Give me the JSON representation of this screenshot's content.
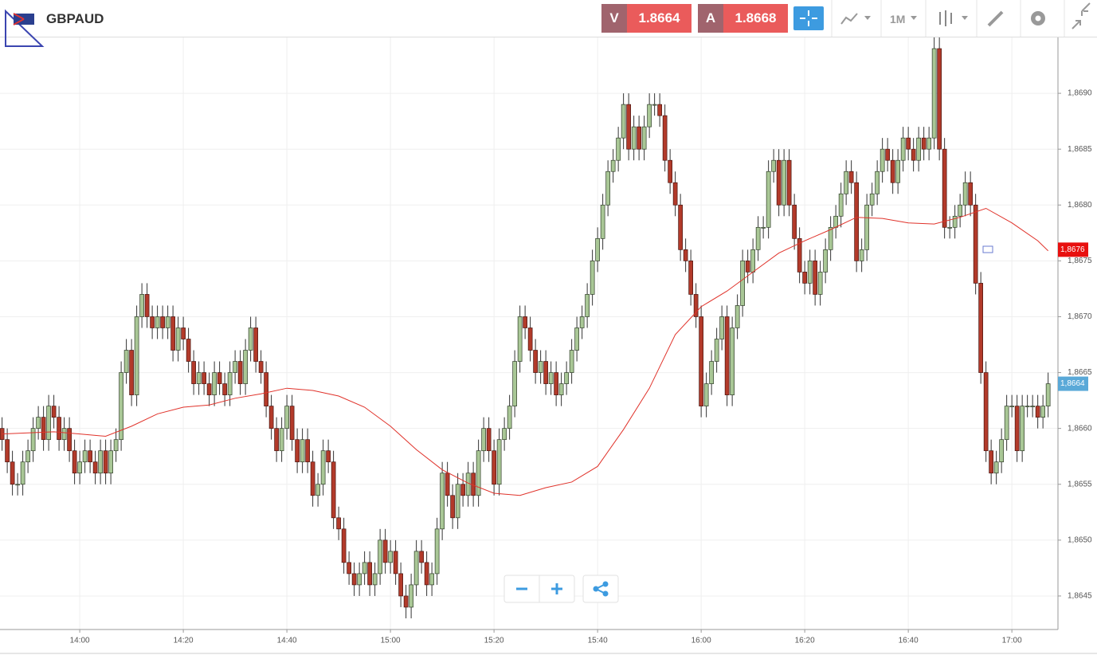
{
  "toolbar": {
    "symbol": "GBPAUD",
    "bid_label": "V",
    "bid": "1.8664",
    "ask_label": "A",
    "ask": "1.8668",
    "timeframe": "1M"
  },
  "chart_data": {
    "type": "candlestick",
    "up_color": "#a9c796",
    "down_color": "#b23a2a",
    "xlim": [
      824.6,
      1028.9
    ],
    "ylim": [
      1.8642,
      1.8695
    ],
    "grid": true,
    "xticks": [
      {
        "value": 840,
        "label": "14:00"
      },
      {
        "value": 860,
        "label": "14:20"
      },
      {
        "value": 880,
        "label": "14:40"
      },
      {
        "value": 900,
        "label": "15:00"
      },
      {
        "value": 920,
        "label": "15:20"
      },
      {
        "value": 940,
        "label": "15:40"
      },
      {
        "value": 960,
        "label": "16:00"
      },
      {
        "value": 980,
        "label": "16:20"
      },
      {
        "value": 1000,
        "label": "16:40"
      },
      {
        "value": 1020,
        "label": "17:00"
      }
    ],
    "yticks": [
      {
        "value": 1.8645,
        "label": "1,8645"
      },
      {
        "value": 1.865,
        "label": "1,8650"
      },
      {
        "value": 1.8655,
        "label": "1,8655"
      },
      {
        "value": 1.866,
        "label": "1,8660"
      },
      {
        "value": 1.8665,
        "label": "1,8665"
      },
      {
        "value": 1.867,
        "label": "1,8670"
      },
      {
        "value": 1.8675,
        "label": "1,8675"
      },
      {
        "value": 1.868,
        "label": "1,8680"
      },
      {
        "value": 1.8685,
        "label": "1,8685"
      },
      {
        "value": 1.869,
        "label": "1,8690"
      }
    ],
    "price_labels": [
      {
        "value": 1.8676,
        "label": "1,8676",
        "color": "#e8100f"
      },
      {
        "value": 1.8664,
        "label": "1,8664",
        "color": "#5aa9d8"
      }
    ],
    "x": [
      825,
      826,
      827,
      828,
      829,
      830,
      831,
      832,
      833,
      834,
      835,
      836,
      837,
      838,
      839,
      840,
      841,
      842,
      843,
      844,
      845,
      846,
      847,
      848,
      849,
      850,
      851,
      852,
      853,
      854,
      855,
      856,
      857,
      858,
      859,
      860,
      861,
      862,
      863,
      864,
      865,
      866,
      867,
      868,
      869,
      870,
      871,
      872,
      873,
      874,
      875,
      876,
      877,
      878,
      879,
      880,
      881,
      882,
      883,
      884,
      885,
      886,
      887,
      888,
      889,
      890,
      891,
      892,
      893,
      894,
      895,
      896,
      897,
      898,
      899,
      900,
      901,
      902,
      903,
      904,
      905,
      906,
      907,
      908,
      909,
      910,
      911,
      912,
      913,
      914,
      915,
      916,
      917,
      918,
      919,
      920,
      921,
      922,
      923,
      924,
      925,
      926,
      927,
      928,
      929,
      930,
      931,
      932,
      933,
      934,
      935,
      936,
      937,
      938,
      939,
      940,
      941,
      942,
      943,
      944,
      945,
      946,
      947,
      948,
      949,
      950,
      951,
      952,
      953,
      954,
      955,
      956,
      957,
      958,
      959,
      960,
      961,
      962,
      963,
      964,
      965,
      966,
      967,
      968,
      969,
      970,
      971,
      972,
      973,
      974,
      975,
      976,
      977,
      978,
      979,
      980,
      981,
      982,
      983,
      984,
      985,
      986,
      987,
      988,
      989,
      990,
      991,
      992,
      993,
      994,
      995,
      996,
      997,
      998,
      999,
      1000,
      1001,
      1002,
      1003,
      1004,
      1005,
      1006,
      1007,
      1008,
      1009,
      1010,
      1011,
      1012,
      1013,
      1014,
      1015,
      1016,
      1017,
      1018,
      1019,
      1020,
      1021,
      1022,
      1023,
      1024,
      1025,
      1026,
      1027
    ],
    "open": [
      1.866,
      1.8659,
      1.8657,
      1.8655,
      1.8655,
      1.8657,
      1.8658,
      1.866,
      1.8661,
      1.8659,
      1.8662,
      1.8661,
      1.8659,
      1.866,
      1.8658,
      1.8656,
      1.8657,
      1.8658,
      1.8657,
      1.8656,
      1.8658,
      1.8656,
      1.8658,
      1.8659,
      1.8665,
      1.8667,
      1.8663,
      1.867,
      1.8672,
      1.867,
      1.8669,
      1.867,
      1.8669,
      1.867,
      1.8667,
      1.8669,
      1.8668,
      1.8666,
      1.8664,
      1.8665,
      1.8664,
      1.8663,
      1.8665,
      1.8664,
      1.8663,
      1.8665,
      1.8666,
      1.8664,
      1.8667,
      1.8669,
      1.8666,
      1.8665,
      1.8662,
      1.866,
      1.8658,
      1.866,
      1.8662,
      1.8659,
      1.8657,
      1.8659,
      1.8657,
      1.8654,
      1.8655,
      1.8658,
      1.8657,
      1.8652,
      1.8651,
      1.8648,
      1.8647,
      1.8646,
      1.8647,
      1.8648,
      1.8646,
      1.8647,
      1.865,
      1.8648,
      1.8649,
      1.8647,
      1.8645,
      1.8644,
      1.8646,
      1.8649,
      1.8648,
      1.8646,
      1.8647,
      1.8651,
      1.8656,
      1.8654,
      1.8652,
      1.8655,
      1.8654,
      1.8656,
      1.8654,
      1.8658,
      1.866,
      1.8658,
      1.8655,
      1.8659,
      1.866,
      1.8662,
      1.8666,
      1.867,
      1.8669,
      1.8667,
      1.8665,
      1.8666,
      1.8664,
      1.8665,
      1.8663,
      1.8664,
      1.8665,
      1.8667,
      1.8669,
      1.867,
      1.8672,
      1.8675,
      1.8677,
      1.868,
      1.8683,
      1.8684,
      1.8686,
      1.8689,
      1.8685,
      1.8687,
      1.8685,
      1.8687,
      1.8689,
      1.8689,
      1.8688,
      1.8684,
      1.8682,
      1.868,
      1.8676,
      1.8675,
      1.8672,
      1.867,
      1.8662,
      1.8664,
      1.8666,
      1.8668,
      1.867,
      1.8663,
      1.8669,
      1.8671,
      1.8675,
      1.8674,
      1.8676,
      1.8678,
      1.8678,
      1.8683,
      1.8684,
      1.868,
      1.8684,
      1.868,
      1.8677,
      1.8674,
      1.8673,
      1.8675,
      1.8672,
      1.8674,
      1.8676,
      1.8678,
      1.8679,
      1.8681,
      1.8683,
      1.8682,
      1.8675,
      1.8676,
      1.868,
      1.8681,
      1.8683,
      1.8685,
      1.8684,
      1.8682,
      1.8684,
      1.8686,
      1.8685,
      1.8684,
      1.8686,
      1.8685,
      1.8686,
      1.8694,
      1.8685,
      1.8678,
      1.8678,
      1.8679,
      1.868,
      1.8682,
      1.868,
      1.8673,
      1.8665,
      1.8658,
      1.8656,
      1.8657,
      1.8659,
      1.8662,
      1.8662,
      1.8658,
      1.8662,
      1.8662,
      1.8662,
      1.8661,
      1.8662
    ],
    "high": [
      1.8661,
      1.866,
      1.8658,
      1.8656,
      1.8658,
      1.8659,
      1.8661,
      1.8662,
      1.8662,
      1.8663,
      1.8663,
      1.8662,
      1.8661,
      1.8661,
      1.8659,
      1.8658,
      1.8659,
      1.8659,
      1.8658,
      1.8659,
      1.8659,
      1.8659,
      1.866,
      1.8666,
      1.8668,
      1.8668,
      1.8671,
      1.8673,
      1.8673,
      1.8671,
      1.8671,
      1.8671,
      1.8671,
      1.8671,
      1.867,
      1.867,
      1.8669,
      1.8667,
      1.8666,
      1.8666,
      1.8665,
      1.8666,
      1.8666,
      1.8665,
      1.8666,
      1.8667,
      1.8667,
      1.8668,
      1.867,
      1.867,
      1.8667,
      1.8666,
      1.8663,
      1.8661,
      1.8661,
      1.8663,
      1.8663,
      1.866,
      1.866,
      1.866,
      1.8658,
      1.8656,
      1.8659,
      1.8659,
      1.8658,
      1.8653,
      1.8652,
      1.8649,
      1.8648,
      1.8648,
      1.8649,
      1.8649,
      1.8648,
      1.8651,
      1.8651,
      1.865,
      1.865,
      1.8648,
      1.8646,
      1.8647,
      1.865,
      1.865,
      1.8649,
      1.8648,
      1.8652,
      1.8657,
      1.8657,
      1.8655,
      1.8656,
      1.8656,
      1.8657,
      1.8657,
      1.8659,
      1.8661,
      1.8661,
      1.8659,
      1.866,
      1.8661,
      1.8663,
      1.8667,
      1.8671,
      1.8671,
      1.867,
      1.8668,
      1.8667,
      1.8667,
      1.8666,
      1.8666,
      1.8665,
      1.8666,
      1.8668,
      1.867,
      1.8671,
      1.8673,
      1.8676,
      1.8678,
      1.8681,
      1.8684,
      1.8685,
      1.8687,
      1.869,
      1.869,
      1.8688,
      1.8688,
      1.8688,
      1.869,
      1.869,
      1.869,
      1.8689,
      1.8685,
      1.8683,
      1.8681,
      1.8677,
      1.8676,
      1.8673,
      1.8671,
      1.8665,
      1.8667,
      1.8669,
      1.8671,
      1.8671,
      1.867,
      1.8672,
      1.8676,
      1.8676,
      1.8677,
      1.8679,
      1.8679,
      1.8684,
      1.8685,
      1.8685,
      1.8685,
      1.8685,
      1.8681,
      1.8678,
      1.8675,
      1.8676,
      1.8676,
      1.8675,
      1.8677,
      1.8679,
      1.868,
      1.8682,
      1.8684,
      1.8684,
      1.8683,
      1.8677,
      1.8681,
      1.8682,
      1.8684,
      1.8686,
      1.8686,
      1.8685,
      1.8685,
      1.8687,
      1.8687,
      1.8686,
      1.8687,
      1.8687,
      1.8687,
      1.8695,
      1.8695,
      1.8686,
      1.8679,
      1.868,
      1.8681,
      1.8683,
      1.8683,
      1.8681,
      1.8674,
      1.8666,
      1.8659,
      1.8658,
      1.866,
      1.8663,
      1.8663,
      1.8663,
      1.8663,
      1.8663,
      1.8663,
      1.8663,
      1.8663,
      1.8665
    ],
    "low": [
      1.8658,
      1.8656,
      1.8654,
      1.8654,
      1.8654,
      1.8656,
      1.8657,
      1.8659,
      1.8658,
      1.8658,
      1.866,
      1.8658,
      1.8658,
      1.8657,
      1.8655,
      1.8655,
      1.8656,
      1.8656,
      1.8655,
      1.8655,
      1.8655,
      1.8655,
      1.8657,
      1.8658,
      1.8664,
      1.8662,
      1.8662,
      1.8669,
      1.8669,
      1.8668,
      1.8668,
      1.8668,
      1.8668,
      1.8666,
      1.8666,
      1.8667,
      1.8665,
      1.8663,
      1.8663,
      1.8663,
      1.8662,
      1.8662,
      1.8663,
      1.8662,
      1.8662,
      1.8664,
      1.8663,
      1.8663,
      1.8666,
      1.8665,
      1.8664,
      1.8661,
      1.8659,
      1.8657,
      1.8657,
      1.8659,
      1.8658,
      1.8656,
      1.8656,
      1.8656,
      1.8653,
      1.8653,
      1.8654,
      1.8656,
      1.8651,
      1.865,
      1.8647,
      1.8646,
      1.8645,
      1.8645,
      1.8646,
      1.8645,
      1.8645,
      1.8646,
      1.8647,
      1.8647,
      1.8646,
      1.8644,
      1.8643,
      1.8643,
      1.8645,
      1.8647,
      1.8645,
      1.8645,
      1.8646,
      1.865,
      1.8653,
      1.8651,
      1.8651,
      1.8653,
      1.8653,
      1.8653,
      1.8653,
      1.8657,
      1.8657,
      1.8654,
      1.8654,
      1.8658,
      1.8659,
      1.8661,
      1.8665,
      1.8668,
      1.8666,
      1.8664,
      1.8664,
      1.8663,
      1.8663,
      1.8662,
      1.8662,
      1.8663,
      1.8664,
      1.8666,
      1.8668,
      1.8669,
      1.8671,
      1.8674,
      1.8676,
      1.8679,
      1.8682,
      1.8683,
      1.8685,
      1.8684,
      1.8684,
      1.8684,
      1.8684,
      1.8686,
      1.8688,
      1.8687,
      1.8683,
      1.8681,
      1.8679,
      1.8675,
      1.8674,
      1.8671,
      1.8669,
      1.8661,
      1.8661,
      1.8663,
      1.8665,
      1.8667,
      1.8662,
      1.8662,
      1.8668,
      1.867,
      1.8673,
      1.8673,
      1.8675,
      1.8677,
      1.8677,
      1.8682,
      1.8679,
      1.8679,
      1.8679,
      1.8676,
      1.8673,
      1.8672,
      1.8672,
      1.8671,
      1.8671,
      1.8673,
      1.8675,
      1.8677,
      1.8678,
      1.868,
      1.8681,
      1.8674,
      1.8674,
      1.8675,
      1.8679,
      1.868,
      1.8682,
      1.8683,
      1.8681,
      1.8681,
      1.8683,
      1.8684,
      1.8683,
      1.8683,
      1.8684,
      1.8684,
      1.8685,
      1.8684,
      1.8677,
      1.8677,
      1.8677,
      1.8678,
      1.8679,
      1.8679,
      1.8672,
      1.8664,
      1.8657,
      1.8655,
      1.8655,
      1.8656,
      1.8658,
      1.8661,
      1.8657,
      1.8657,
      1.8661,
      1.8661,
      1.866,
      1.866,
      1.8661
    ],
    "close": [
      1.8659,
      1.8657,
      1.8655,
      1.8655,
      1.8657,
      1.8658,
      1.866,
      1.8661,
      1.8659,
      1.8662,
      1.8661,
      1.8659,
      1.866,
      1.8658,
      1.8656,
      1.8657,
      1.8658,
      1.8657,
      1.8656,
      1.8658,
      1.8656,
      1.8658,
      1.8659,
      1.8665,
      1.8667,
      1.8663,
      1.867,
      1.8672,
      1.867,
      1.8669,
      1.867,
      1.8669,
      1.867,
      1.8667,
      1.8669,
      1.8668,
      1.8666,
      1.8664,
      1.8665,
      1.8664,
      1.8663,
      1.8665,
      1.8664,
      1.8663,
      1.8665,
      1.8666,
      1.8664,
      1.8667,
      1.8669,
      1.8666,
      1.8665,
      1.8662,
      1.866,
      1.8658,
      1.866,
      1.8662,
      1.8659,
      1.8657,
      1.8659,
      1.8657,
      1.8654,
      1.8655,
      1.8658,
      1.8657,
      1.8652,
      1.8651,
      1.8648,
      1.8647,
      1.8646,
      1.8647,
      1.8648,
      1.8646,
      1.8647,
      1.865,
      1.8648,
      1.8649,
      1.8647,
      1.8645,
      1.8644,
      1.8646,
      1.8649,
      1.8648,
      1.8646,
      1.8647,
      1.8651,
      1.8656,
      1.8654,
      1.8652,
      1.8655,
      1.8654,
      1.8656,
      1.8654,
      1.8658,
      1.866,
      1.8658,
      1.8655,
      1.8659,
      1.866,
      1.8662,
      1.8666,
      1.867,
      1.8669,
      1.8667,
      1.8665,
      1.8666,
      1.8664,
      1.8665,
      1.8663,
      1.8664,
      1.8665,
      1.8667,
      1.8669,
      1.867,
      1.8672,
      1.8675,
      1.8677,
      1.868,
      1.8683,
      1.8684,
      1.8686,
      1.8689,
      1.8685,
      1.8687,
      1.8685,
      1.8687,
      1.8689,
      1.8689,
      1.8688,
      1.8684,
      1.8682,
      1.868,
      1.8676,
      1.8675,
      1.8672,
      1.867,
      1.8662,
      1.8664,
      1.8666,
      1.8668,
      1.867,
      1.8663,
      1.8669,
      1.8671,
      1.8675,
      1.8674,
      1.8676,
      1.8678,
      1.8678,
      1.8683,
      1.8684,
      1.868,
      1.8684,
      1.868,
      1.8677,
      1.8674,
      1.8673,
      1.8675,
      1.8672,
      1.8674,
      1.8676,
      1.8678,
      1.8679,
      1.8681,
      1.8683,
      1.8682,
      1.8675,
      1.8676,
      1.868,
      1.8681,
      1.8683,
      1.8685,
      1.8684,
      1.8682,
      1.8684,
      1.8686,
      1.8685,
      1.8684,
      1.8686,
      1.8685,
      1.8686,
      1.8694,
      1.8685,
      1.8678,
      1.8678,
      1.8679,
      1.868,
      1.8682,
      1.868,
      1.8673,
      1.8665,
      1.8658,
      1.8656,
      1.8657,
      1.8659,
      1.8662,
      1.8662,
      1.8658,
      1.8662,
      1.8662,
      1.8662,
      1.8661,
      1.8662,
      1.8664
    ],
    "moving_average": {
      "color": "#e0322a",
      "x": [
        825,
        830,
        835,
        840,
        845,
        850,
        855,
        860,
        865,
        870,
        875,
        880,
        885,
        890,
        895,
        900,
        905,
        910,
        915,
        920,
        925,
        930,
        935,
        940,
        945,
        950,
        955,
        960,
        965,
        970,
        975,
        980,
        985,
        990,
        995,
        1000,
        1005,
        1010,
        1015,
        1020,
        1025,
        1027
      ],
      "values": [
        1.86595,
        1.86596,
        1.86597,
        1.86595,
        1.86593,
        1.86602,
        1.86613,
        1.86619,
        1.86621,
        1.86627,
        1.86631,
        1.86636,
        1.86634,
        1.86629,
        1.86619,
        1.86602,
        1.86581,
        1.86563,
        1.86551,
        1.86542,
        1.8654,
        1.86547,
        1.86552,
        1.86566,
        1.86599,
        1.86636,
        1.86684,
        1.86709,
        1.86723,
        1.8674,
        1.86757,
        1.86768,
        1.86778,
        1.86789,
        1.86788,
        1.86784,
        1.86783,
        1.86789,
        1.86797,
        1.86784,
        1.86768,
        1.86759
      ]
    }
  }
}
